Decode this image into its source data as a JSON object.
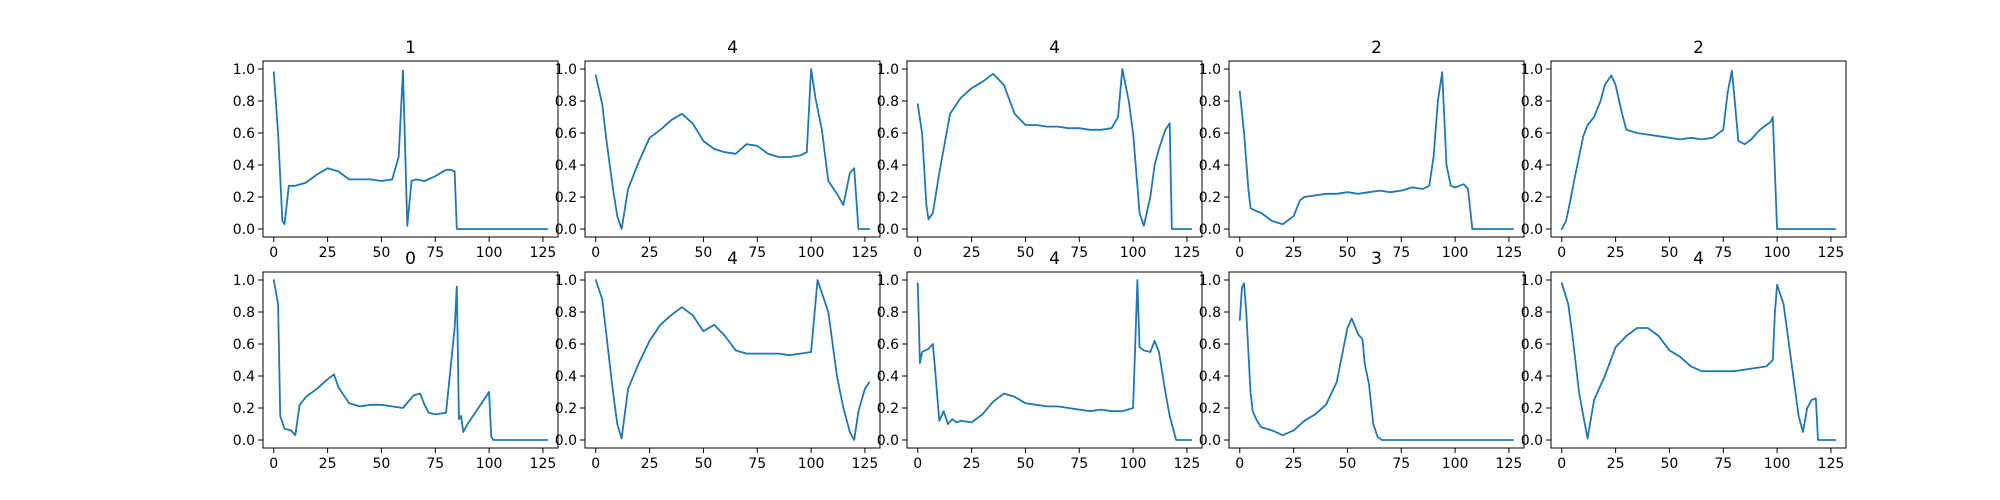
{
  "colors": {
    "line": "#1f77b4",
    "background": "#ffffff",
    "axes": "#000000"
  },
  "chart_data": [
    {
      "type": "line",
      "title": "1",
      "x": [
        0,
        2,
        4,
        5,
        7,
        10,
        15,
        20,
        25,
        30,
        35,
        40,
        45,
        50,
        55,
        58,
        60,
        62,
        64,
        66,
        70,
        75,
        80,
        82,
        84,
        85,
        100,
        127
      ],
      "y": [
        0.98,
        0.6,
        0.05,
        0.03,
        0.27,
        0.27,
        0.29,
        0.34,
        0.38,
        0.36,
        0.31,
        0.31,
        0.31,
        0.3,
        0.31,
        0.45,
        0.99,
        0.02,
        0.3,
        0.31,
        0.3,
        0.33,
        0.37,
        0.37,
        0.36,
        0.0,
        0.0,
        0.0
      ],
      "xlim": [
        -5,
        132
      ],
      "ylim": [
        -0.05,
        1.05
      ],
      "xticks": [
        0,
        25,
        50,
        75,
        100,
        125
      ],
      "yticks": [
        0.0,
        0.2,
        0.4,
        0.6,
        0.8,
        1.0
      ]
    },
    {
      "type": "line",
      "title": "4",
      "x": [
        0,
        3,
        5,
        8,
        10,
        12,
        15,
        20,
        25,
        30,
        35,
        40,
        45,
        50,
        55,
        60,
        65,
        70,
        75,
        80,
        85,
        90,
        95,
        98,
        100,
        102,
        105,
        108,
        112,
        115,
        118,
        120,
        122,
        125,
        127
      ],
      "y": [
        0.96,
        0.78,
        0.55,
        0.25,
        0.08,
        0.0,
        0.25,
        0.42,
        0.57,
        0.62,
        0.68,
        0.72,
        0.66,
        0.55,
        0.5,
        0.48,
        0.47,
        0.53,
        0.52,
        0.47,
        0.45,
        0.45,
        0.46,
        0.48,
        1.0,
        0.82,
        0.62,
        0.3,
        0.22,
        0.15,
        0.35,
        0.38,
        0.0,
        0.0,
        0.0
      ],
      "xlim": [
        -5,
        132
      ],
      "ylim": [
        -0.05,
        1.05
      ],
      "xticks": [
        0,
        25,
        50,
        75,
        100,
        125
      ],
      "yticks": [
        0.0,
        0.2,
        0.4,
        0.6,
        0.8,
        1.0
      ]
    },
    {
      "type": "line",
      "title": "4",
      "x": [
        0,
        2,
        4,
        5,
        7,
        10,
        15,
        20,
        25,
        30,
        35,
        40,
        45,
        50,
        55,
        60,
        65,
        70,
        75,
        80,
        85,
        90,
        93,
        95,
        98,
        100,
        103,
        105,
        108,
        110,
        112,
        115,
        117,
        118,
        120,
        125,
        127
      ],
      "y": [
        0.78,
        0.6,
        0.15,
        0.06,
        0.1,
        0.35,
        0.72,
        0.82,
        0.88,
        0.92,
        0.97,
        0.9,
        0.72,
        0.65,
        0.65,
        0.64,
        0.64,
        0.63,
        0.63,
        0.62,
        0.62,
        0.63,
        0.7,
        1.0,
        0.8,
        0.6,
        0.1,
        0.02,
        0.2,
        0.4,
        0.5,
        0.62,
        0.66,
        0.0,
        0.0,
        0.0,
        0.0
      ],
      "xlim": [
        -5,
        132
      ],
      "ylim": [
        -0.05,
        1.05
      ],
      "xticks": [
        0,
        25,
        50,
        75,
        100,
        125
      ],
      "yticks": [
        0.0,
        0.2,
        0.4,
        0.6,
        0.8,
        1.0
      ]
    },
    {
      "type": "line",
      "title": "2",
      "x": [
        0,
        2,
        4,
        5,
        8,
        10,
        15,
        20,
        25,
        28,
        30,
        35,
        40,
        45,
        50,
        55,
        60,
        65,
        70,
        75,
        80,
        85,
        88,
        90,
        92,
        94,
        96,
        98,
        100,
        102,
        104,
        106,
        108,
        110,
        125,
        127
      ],
      "y": [
        0.86,
        0.6,
        0.25,
        0.13,
        0.11,
        0.1,
        0.05,
        0.03,
        0.08,
        0.18,
        0.2,
        0.21,
        0.22,
        0.22,
        0.23,
        0.22,
        0.23,
        0.24,
        0.23,
        0.24,
        0.26,
        0.25,
        0.27,
        0.45,
        0.8,
        0.98,
        0.4,
        0.27,
        0.26,
        0.27,
        0.28,
        0.25,
        0.0,
        0.0,
        0.0,
        0.0
      ],
      "xlim": [
        -5,
        132
      ],
      "ylim": [
        -0.05,
        1.05
      ],
      "xticks": [
        0,
        25,
        50,
        75,
        100,
        125
      ],
      "yticks": [
        0.0,
        0.2,
        0.4,
        0.6,
        0.8,
        1.0
      ]
    },
    {
      "type": "line",
      "title": "2",
      "x": [
        0,
        2,
        4,
        6,
        8,
        10,
        12,
        15,
        18,
        20,
        23,
        25,
        28,
        30,
        35,
        40,
        45,
        50,
        55,
        60,
        65,
        70,
        75,
        77,
        79,
        80,
        82,
        85,
        88,
        92,
        95,
        97,
        98,
        100,
        127
      ],
      "y": [
        0.0,
        0.05,
        0.18,
        0.32,
        0.45,
        0.58,
        0.65,
        0.7,
        0.8,
        0.9,
        0.96,
        0.9,
        0.72,
        0.62,
        0.6,
        0.59,
        0.58,
        0.57,
        0.56,
        0.57,
        0.56,
        0.57,
        0.62,
        0.85,
        0.99,
        0.85,
        0.55,
        0.53,
        0.56,
        0.62,
        0.65,
        0.67,
        0.7,
        0.0,
        0.0
      ],
      "xlim": [
        -5,
        132
      ],
      "ylim": [
        -0.05,
        1.05
      ],
      "xticks": [
        0,
        25,
        50,
        75,
        100,
        125
      ],
      "yticks": [
        0.0,
        0.2,
        0.4,
        0.6,
        0.8,
        1.0
      ]
    },
    {
      "type": "line",
      "title": "0",
      "x": [
        0,
        2,
        3,
        5,
        8,
        10,
        12,
        15,
        20,
        25,
        28,
        30,
        35,
        40,
        45,
        50,
        55,
        60,
        65,
        68,
        70,
        72,
        75,
        80,
        84,
        85,
        86,
        87,
        88,
        90,
        95,
        100,
        101,
        102,
        110,
        127
      ],
      "y": [
        1.0,
        0.85,
        0.15,
        0.07,
        0.06,
        0.03,
        0.22,
        0.27,
        0.32,
        0.38,
        0.41,
        0.33,
        0.23,
        0.21,
        0.22,
        0.22,
        0.21,
        0.2,
        0.28,
        0.29,
        0.22,
        0.17,
        0.16,
        0.17,
        0.7,
        0.96,
        0.13,
        0.15,
        0.05,
        0.1,
        0.2,
        0.3,
        0.02,
        0.0,
        0.0,
        0.0
      ],
      "xlim": [
        -5,
        132
      ],
      "ylim": [
        -0.05,
        1.05
      ],
      "xticks": [
        0,
        25,
        50,
        75,
        100,
        125
      ],
      "yticks": [
        0.0,
        0.2,
        0.4,
        0.6,
        0.8,
        1.0
      ]
    },
    {
      "type": "line",
      "title": "4",
      "x": [
        0,
        3,
        5,
        8,
        10,
        12,
        15,
        20,
        25,
        30,
        35,
        40,
        45,
        50,
        55,
        60,
        65,
        70,
        75,
        80,
        85,
        90,
        95,
        100,
        103,
        105,
        108,
        110,
        112,
        115,
        118,
        120,
        122,
        125,
        127
      ],
      "y": [
        1.0,
        0.88,
        0.65,
        0.3,
        0.1,
        0.01,
        0.32,
        0.48,
        0.62,
        0.72,
        0.78,
        0.83,
        0.78,
        0.68,
        0.72,
        0.65,
        0.56,
        0.54,
        0.54,
        0.54,
        0.54,
        0.53,
        0.54,
        0.55,
        1.0,
        0.92,
        0.8,
        0.6,
        0.4,
        0.2,
        0.05,
        0.0,
        0.18,
        0.32,
        0.36
      ],
      "xlim": [
        -5,
        132
      ],
      "ylim": [
        -0.05,
        1.05
      ],
      "xticks": [
        0,
        25,
        50,
        75,
        100,
        125
      ],
      "yticks": [
        0.0,
        0.2,
        0.4,
        0.6,
        0.8,
        1.0
      ]
    },
    {
      "type": "line",
      "title": "4",
      "x": [
        0,
        1,
        2,
        5,
        7,
        8,
        10,
        12,
        14,
        16,
        18,
        20,
        25,
        30,
        35,
        40,
        45,
        50,
        55,
        60,
        65,
        70,
        75,
        80,
        85,
        90,
        95,
        100,
        101,
        102,
        103,
        105,
        108,
        110,
        112,
        115,
        117,
        120,
        125,
        127
      ],
      "y": [
        0.98,
        0.48,
        0.55,
        0.57,
        0.6,
        0.45,
        0.12,
        0.18,
        0.1,
        0.13,
        0.11,
        0.12,
        0.11,
        0.16,
        0.24,
        0.29,
        0.27,
        0.23,
        0.22,
        0.21,
        0.21,
        0.2,
        0.19,
        0.18,
        0.19,
        0.18,
        0.18,
        0.2,
        0.6,
        1.0,
        0.58,
        0.56,
        0.55,
        0.62,
        0.55,
        0.3,
        0.15,
        0.0,
        0.0,
        0.0
      ],
      "xlim": [
        -5,
        132
      ],
      "ylim": [
        -0.05,
        1.05
      ],
      "xticks": [
        0,
        25,
        50,
        75,
        100,
        125
      ],
      "yticks": [
        0.0,
        0.2,
        0.4,
        0.6,
        0.8,
        1.0
      ]
    },
    {
      "type": "line",
      "title": "3",
      "x": [
        0,
        1,
        2,
        3,
        4,
        5,
        6,
        8,
        10,
        15,
        20,
        25,
        30,
        35,
        40,
        45,
        50,
        52,
        55,
        57,
        58,
        60,
        62,
        64,
        66,
        70,
        80,
        100,
        125,
        127
      ],
      "y": [
        0.75,
        0.95,
        0.98,
        0.8,
        0.55,
        0.3,
        0.18,
        0.12,
        0.08,
        0.06,
        0.03,
        0.06,
        0.12,
        0.16,
        0.22,
        0.36,
        0.7,
        0.76,
        0.66,
        0.63,
        0.48,
        0.35,
        0.1,
        0.02,
        0.0,
        0.0,
        0.0,
        0.0,
        0.0,
        0.0
      ],
      "xlim": [
        -5,
        132
      ],
      "ylim": [
        -0.05,
        1.05
      ],
      "xticks": [
        0,
        25,
        50,
        75,
        100,
        125
      ],
      "yticks": [
        0.0,
        0.2,
        0.4,
        0.6,
        0.8,
        1.0
      ]
    },
    {
      "type": "line",
      "title": "4",
      "x": [
        0,
        3,
        5,
        8,
        10,
        12,
        15,
        20,
        25,
        30,
        35,
        40,
        45,
        50,
        55,
        60,
        65,
        70,
        75,
        80,
        85,
        90,
        95,
        98,
        99,
        100,
        103,
        105,
        108,
        110,
        112,
        114,
        116,
        118,
        119,
        120,
        125,
        127
      ],
      "y": [
        0.98,
        0.85,
        0.65,
        0.3,
        0.15,
        0.01,
        0.25,
        0.4,
        0.58,
        0.65,
        0.7,
        0.7,
        0.65,
        0.56,
        0.52,
        0.46,
        0.43,
        0.43,
        0.43,
        0.43,
        0.44,
        0.45,
        0.46,
        0.5,
        0.8,
        0.97,
        0.85,
        0.65,
        0.35,
        0.15,
        0.05,
        0.2,
        0.25,
        0.26,
        0.0,
        0.0,
        0.0,
        0.0
      ],
      "xlim": [
        -5,
        132
      ],
      "ylim": [
        -0.05,
        1.05
      ],
      "xticks": [
        0,
        25,
        50,
        75,
        100,
        125
      ],
      "yticks": [
        0.0,
        0.2,
        0.4,
        0.6,
        0.8,
        1.0
      ]
    }
  ]
}
